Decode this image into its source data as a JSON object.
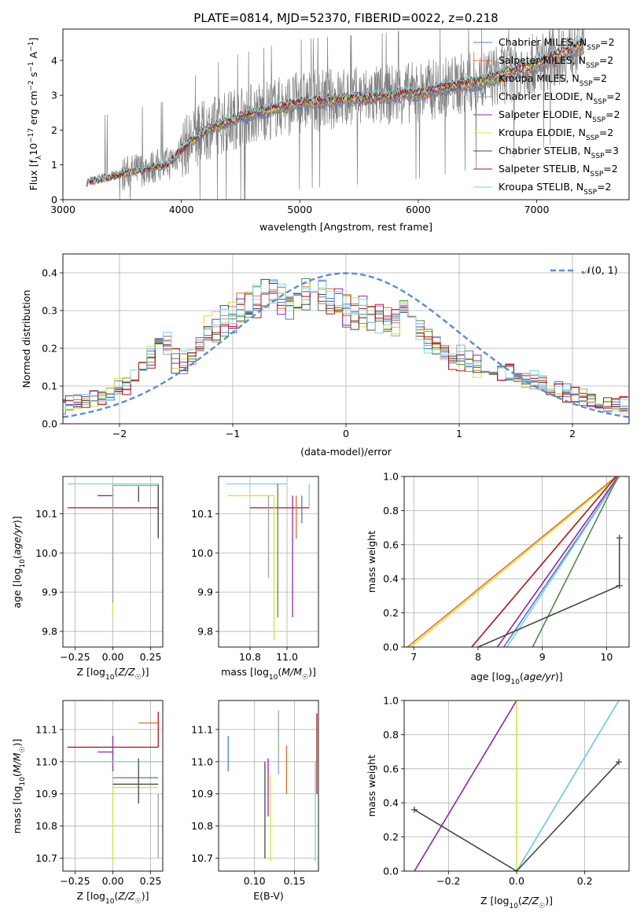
{
  "title": "PLATE=0814, MJD=52370, FIBERID=0022, z=0.218",
  "colors": {
    "chabrier_miles": "#4f79d2",
    "salpeter_miles": "#e0702b",
    "kroupa_miles": "#4e8a4e",
    "chabrier_elodie": "#a0a0a0",
    "salpeter_elodie": "#8e24aa",
    "kroupa_elodie": "#d6e23a",
    "chabrier_stelib": "#474747",
    "salpeter_stelib": "#b11414",
    "kroupa_stelib": "#77d4e4",
    "gaussian": "#5b8bd8"
  },
  "chart_data": [
    {
      "id": "spectrum",
      "type": "line",
      "xlabel": "wavelength [Angstrom, rest frame]",
      "ylabel": "Flux [f_λ 10^-17 erg cm^-2 s^-1 A^-1]",
      "xlim": [
        3000,
        7780
      ],
      "ylim": [
        0,
        4.9
      ],
      "xticks": [
        "3000",
        "4000",
        "5000",
        "6000",
        "7000"
      ],
      "yticks": [
        "0",
        "1",
        "2",
        "3",
        "4"
      ],
      "grid": false,
      "legend_position": "top-right",
      "legend": [
        {
          "model": "Chabrier MILES",
          "n": "2"
        },
        {
          "model": "Salpeter MILES",
          "n": "2"
        },
        {
          "model": "Kroupa MILES",
          "n": "2"
        },
        {
          "model": "Chabrier ELODIE",
          "n": "2"
        },
        {
          "model": "Salpeter ELODIE",
          "n": "2"
        },
        {
          "model": "Kroupa ELODIE",
          "n": "2"
        },
        {
          "model": "Chabrier STELIB",
          "n": "3"
        },
        {
          "model": "Salpeter STELIB",
          "n": "2"
        },
        {
          "model": "Kroupa STELIB",
          "n": "2"
        }
      ],
      "model_continuum": {
        "x": [
          3200,
          3500,
          3700,
          3900,
          4000,
          4200,
          4500,
          4800,
          5000,
          5300,
          5600,
          6000,
          6500,
          7000,
          7400
        ],
        "y": [
          0.5,
          0.75,
          0.9,
          1.05,
          1.45,
          2.0,
          2.4,
          2.65,
          2.8,
          2.9,
          2.95,
          3.1,
          3.4,
          3.9,
          4.5
        ]
      },
      "data_note_range": [
        3200,
        7400
      ]
    },
    {
      "id": "residuals",
      "type": "histogram",
      "xlabel": "(data-model)/error",
      "ylabel": "Normed distribution",
      "xlim": [
        -2.5,
        2.5
      ],
      "ylim": [
        0,
        0.45
      ],
      "xticks": [
        "−2",
        "−1",
        "0",
        "1",
        "2"
      ],
      "yticks": [
        "0.0",
        "0.1",
        "0.2",
        "0.3",
        "0.4"
      ],
      "grid": true,
      "legend_position": "top-right",
      "legend_label": "𝒩(0, 1)",
      "bin_width": 0.1,
      "base_density": [
        0.05,
        0.05,
        0.06,
        0.06,
        0.07,
        0.07,
        0.08,
        0.09,
        0.1,
        0.12,
        0.15,
        0.18,
        0.22,
        0.2,
        0.17,
        0.16,
        0.17,
        0.21,
        0.24,
        0.25,
        0.27,
        0.28,
        0.3,
        0.31,
        0.32,
        0.33,
        0.34,
        0.33,
        0.32,
        0.33,
        0.35,
        0.36,
        0.34,
        0.32,
        0.31,
        0.3,
        0.29,
        0.3,
        0.29,
        0.28,
        0.27,
        0.27,
        0.28,
        0.27,
        0.25,
        0.22,
        0.2,
        0.19,
        0.17,
        0.17,
        0.16,
        0.15,
        0.15,
        0.14,
        0.14,
        0.13,
        0.12,
        0.11,
        0.11,
        0.1,
        0.09,
        0.09,
        0.08,
        0.07,
        0.07,
        0.06,
        0.06,
        0.05,
        0.05,
        0.05
      ]
    },
    {
      "id": "age_vs_Z",
      "type": "errorbar",
      "xlabel": "Z [log₁₀(Z/Z☉)]",
      "ylabel": "age  [log₁₀(age/yr)]",
      "xlim": [
        -0.33,
        0.33
      ],
      "ylim": [
        9.76,
        10.195
      ],
      "xticks": [
        "−0.25",
        "0.00",
        "0.25"
      ],
      "yticks": [
        "9.8",
        "9.9",
        "10.0",
        "10.1"
      ],
      "grid": true,
      "points": [
        {
          "key": "salpeter_stelib",
          "x": 0.0,
          "y": 10.115,
          "xerr": [
            0.3,
            0.3
          ],
          "yerr": [
            0.0,
            0.0
          ]
        },
        {
          "key": "salpeter_elodie",
          "x": 0.0,
          "y": 10.146,
          "xerr": [
            0.1,
            0.0
          ],
          "yerr": [
            0.0,
            0.0
          ]
        },
        {
          "key": "kroupa_stelib",
          "x": 0.0,
          "y": 10.176,
          "xerr": [
            0.3,
            0.3
          ],
          "yerr": [
            0.0,
            0.0
          ]
        },
        {
          "key": "kroupa_elodie",
          "x": 0.0,
          "y": 10.172,
          "xerr": [
            0.0,
            0.3
          ],
          "yerr": [
            0.34,
            0.0
          ]
        },
        {
          "key": "chabrier_elodie",
          "x": 0.0,
          "y": 10.172,
          "xerr": [
            0.0,
            0.3
          ],
          "yerr": [
            0.3,
            0.0
          ]
        },
        {
          "key": "kroupa_miles",
          "x": 0.3,
          "y": 10.176,
          "xerr": [
            0.0,
            0.0
          ],
          "yerr": [
            0.14,
            0.0
          ]
        },
        {
          "key": "chabrier_stelib",
          "x": 0.17,
          "y": 10.15,
          "xerr": [
            0.0,
            0.0
          ],
          "yerr": [
            0.02,
            0.02
          ]
        },
        {
          "key": "chabrier_stelib",
          "x": 0.3,
          "y": 10.1,
          "xerr": [
            0.0,
            0.0
          ],
          "yerr": [
            0.06,
            0.07
          ]
        },
        {
          "key": "chabrier_miles",
          "x": 0.3,
          "y": 10.176,
          "xerr": [
            0.0,
            0.0
          ],
          "yerr": [
            0.0,
            0.0
          ]
        },
        {
          "key": "salpeter_miles",
          "x": 0.3,
          "y": 10.176,
          "xerr": [
            0.0,
            0.0
          ],
          "yerr": [
            0.0,
            0.0
          ]
        }
      ]
    },
    {
      "id": "age_vs_mass",
      "type": "errorbar",
      "xlabel": "mass [log₁₀(M/M☉)]",
      "ylabel": "",
      "xlim": [
        10.63,
        11.17
      ],
      "ylim": [
        9.76,
        10.195
      ],
      "xticks": [
        "10.8",
        "11.0"
      ],
      "yticks": [
        "9.8",
        "9.9",
        "10.0",
        "10.1"
      ],
      "grid": true,
      "points": [
        {
          "key": "salpeter_stelib",
          "x": 11.0,
          "y": 10.115,
          "xerr": [
            0.2,
            0.12
          ],
          "yerr": [
            0.0,
            0.0
          ]
        },
        {
          "key": "salpeter_elodie",
          "x": 11.03,
          "y": 10.146,
          "xerr": [
            0.0,
            0.0
          ],
          "yerr": [
            0.31,
            0.0
          ]
        },
        {
          "key": "salpeter_miles",
          "x": 11.05,
          "y": 10.146,
          "xerr": [
            0.0,
            0.0
          ],
          "yerr": [
            0.11,
            0.0
          ]
        },
        {
          "key": "kroupa_stelib",
          "x": 11.0,
          "y": 10.176,
          "xerr": [
            0.33,
            0.0
          ],
          "yerr": [
            0.0,
            0.0
          ]
        },
        {
          "key": "kroupa_elodie",
          "x": 10.93,
          "y": 10.146,
          "xerr": [
            0.25,
            0.0
          ],
          "yerr": [
            0.37,
            0.0
          ]
        },
        {
          "key": "chabrier_elodie",
          "x": 10.9,
          "y": 10.146,
          "xerr": [
            0.0,
            0.0
          ],
          "yerr": [
            0.21,
            0.0
          ]
        },
        {
          "key": "kroupa_miles",
          "x": 10.95,
          "y": 10.176,
          "xerr": [
            0.0,
            0.0
          ],
          "yerr": [
            0.34,
            0.0
          ]
        },
        {
          "key": "chabrier_stelib",
          "x": 10.95,
          "y": 10.176,
          "xerr": [
            0.0,
            0.0
          ],
          "yerr": [
            0.0,
            0.0
          ]
        },
        {
          "key": "chabrier_miles",
          "x": 11.08,
          "y": 10.146,
          "xerr": [
            0.0,
            0.0
          ],
          "yerr": [
            0.07,
            0.0
          ]
        },
        {
          "key": "kroupa_stelib",
          "x": 11.12,
          "y": 10.176,
          "xerr": [
            0.0,
            0.0
          ],
          "yerr": [
            0.06,
            0.0
          ]
        }
      ]
    },
    {
      "id": "weight_vs_age",
      "type": "line",
      "xlabel": "age  [log₁₀(age/yr)]",
      "ylabel": "mass weight",
      "xlim": [
        6.85,
        10.35
      ],
      "ylim": [
        0,
        1
      ],
      "xticks": [
        "7",
        "8",
        "9",
        "10"
      ],
      "yticks": [
        "0.0",
        "0.2",
        "0.4",
        "0.6",
        "0.8",
        "1.0"
      ],
      "grid": true,
      "series": [
        {
          "key": "kroupa_elodie",
          "x": [
            6.95,
            10.18
          ],
          "y": [
            0.0,
            1.0
          ]
        },
        {
          "key": "salpeter_miles",
          "x": [
            6.9,
            10.15
          ],
          "y": [
            0.0,
            1.0
          ]
        },
        {
          "key": "salpeter_stelib",
          "x": [
            7.9,
            10.15
          ],
          "y": [
            0.0,
            1.0
          ]
        },
        {
          "key": "salpeter_elodie",
          "x": [
            8.3,
            10.18
          ],
          "y": [
            0.0,
            1.0
          ]
        },
        {
          "key": "chabrier_miles",
          "x": [
            8.4,
            10.2
          ],
          "y": [
            0.0,
            1.0
          ]
        },
        {
          "key": "kroupa_stelib",
          "x": [
            8.45,
            10.2
          ],
          "y": [
            0.0,
            1.0
          ]
        },
        {
          "key": "kroupa_miles",
          "x": [
            8.85,
            10.18
          ],
          "y": [
            0.0,
            1.0
          ]
        },
        {
          "key": "chabrier_stelib",
          "x": [
            8.0,
            10.2
          ],
          "y": [
            0.0,
            0.36
          ]
        },
        {
          "key": "chabrier_stelib",
          "x": [
            10.2,
            10.2
          ],
          "y": [
            0.36,
            0.64
          ]
        }
      ],
      "markers": [
        {
          "key": "chabrier_stelib",
          "x": 10.2,
          "y": 0.36
        },
        {
          "key": "chabrier_stelib",
          "x": 10.2,
          "y": 0.64
        }
      ]
    },
    {
      "id": "mass_vs_Z",
      "type": "errorbar",
      "xlabel": "Z [log₁₀(Z/Z☉)]",
      "ylabel": "mass [log₁₀(M/M☉)]",
      "xlim": [
        -0.33,
        0.33
      ],
      "ylim": [
        10.66,
        11.19
      ],
      "xticks": [
        "−0.25",
        "0.00",
        "0.25"
      ],
      "yticks": [
        "10.7",
        "10.8",
        "10.9",
        "11.0",
        "11.1"
      ],
      "grid": true,
      "points": [
        {
          "key": "salpeter_stelib",
          "x": 0.3,
          "y": 11.045,
          "xerr": [
            0.6,
            0.0
          ],
          "yerr": [
            0.0,
            0.11
          ]
        },
        {
          "key": "salpeter_elodie",
          "x": 0.0,
          "y": 11.03,
          "xerr": [
            0.1,
            0.0
          ],
          "yerr": [
            0.06,
            0.05
          ]
        },
        {
          "key": "kroupa_stelib",
          "x": 0.0,
          "y": 11.0,
          "xerr": [
            0.3,
            0.3
          ],
          "yerr": [
            0.0,
            0.0
          ]
        },
        {
          "key": "kroupa_elodie",
          "x": 0.0,
          "y": 10.92,
          "xerr": [
            0.0,
            0.3
          ],
          "yerr": [
            0.24,
            0.0
          ]
        },
        {
          "key": "kroupa_miles",
          "x": 0.0,
          "y": 10.95,
          "xerr": [
            0.0,
            0.3
          ],
          "yerr": [
            0.0,
            0.0
          ]
        },
        {
          "key": "chabrier_stelib",
          "x": 0.17,
          "y": 10.93,
          "xerr": [
            0.17,
            0.13
          ],
          "yerr": [
            0.06,
            0.08
          ]
        },
        {
          "key": "salpeter_miles",
          "x": 0.3,
          "y": 11.12,
          "xerr": [
            0.13,
            0.0
          ],
          "yerr": [
            0.0,
            0.0
          ]
        },
        {
          "key": "chabrier_miles",
          "x": 0.3,
          "y": 11.08,
          "xerr": [
            0.0,
            0.0
          ],
          "yerr": [
            0.0,
            0.0
          ]
        },
        {
          "key": "chabrier_elodie",
          "x": 0.3,
          "y": 10.9,
          "xerr": [
            0.0,
            0.0
          ],
          "yerr": [
            0.2,
            0.0
          ]
        }
      ]
    },
    {
      "id": "mass_vs_ebv",
      "type": "errorbar",
      "xlabel": "E(B-V)",
      "ylabel": "",
      "xlim": [
        0.055,
        0.18
      ],
      "ylim": [
        10.66,
        11.19
      ],
      "xticks": [
        "0.10",
        "0.15"
      ],
      "yticks": [
        "10.7",
        "10.8",
        "10.9",
        "11.0",
        "11.1"
      ],
      "grid": true,
      "points": [
        {
          "key": "chabrier_miles",
          "x": 0.067,
          "y": 11.03,
          "yerr": [
            0.06,
            0.05
          ]
        },
        {
          "key": "chabrier_stelib",
          "x": 0.113,
          "y": 10.85,
          "yerr": [
            0.15,
            0.15
          ]
        },
        {
          "key": "salpeter_elodie",
          "x": 0.117,
          "y": 10.93,
          "yerr": [
            0.1,
            0.08
          ]
        },
        {
          "key": "kroupa_elodie",
          "x": 0.12,
          "y": 10.83,
          "yerr": [
            0.14,
            0.13
          ]
        },
        {
          "key": "chabrier_elodie",
          "x": 0.13,
          "y": 11.03,
          "yerr": [
            0.07,
            0.13
          ]
        },
        {
          "key": "salpeter_miles",
          "x": 0.14,
          "y": 10.98,
          "yerr": [
            0.08,
            0.07
          ]
        },
        {
          "key": "salpeter_stelib",
          "x": 0.178,
          "y": 11.0,
          "yerr": [
            0.1,
            0.15
          ]
        },
        {
          "key": "kroupa_stelib",
          "x": 0.176,
          "y": 10.85,
          "yerr": [
            0.16,
            0.15
          ]
        }
      ]
    },
    {
      "id": "weight_vs_Z",
      "type": "line",
      "xlabel": "Z [log₁₀(Z/Z☉)]",
      "ylabel": "mass weight",
      "xlim": [
        -0.33,
        0.33
      ],
      "ylim": [
        0,
        1
      ],
      "xticks": [
        "−0.2",
        "0.0",
        "0.2"
      ],
      "yticks": [
        "0.0",
        "0.2",
        "0.4",
        "0.6",
        "0.8",
        "1.0"
      ],
      "grid": true,
      "series": [
        {
          "key": "salpeter_elodie",
          "x": [
            -0.3,
            0.0
          ],
          "y": [
            0.0,
            1.0
          ]
        },
        {
          "key": "kroupa_elodie",
          "x": [
            0.0,
            0.0
          ],
          "y": [
            0.0,
            1.0
          ]
        },
        {
          "key": "chabrier_miles",
          "x": [
            0.0,
            0.3
          ],
          "y": [
            0.0,
            1.0
          ]
        },
        {
          "key": "kroupa_stelib",
          "x": [
            0.0,
            0.3
          ],
          "y": [
            0.0,
            1.0
          ]
        },
        {
          "key": "chabrier_stelib",
          "x": [
            -0.3,
            0.0
          ],
          "y": [
            0.36,
            0.0
          ]
        },
        {
          "key": "chabrier_stelib",
          "x": [
            0.0,
            0.3
          ],
          "y": [
            0.0,
            0.64
          ]
        }
      ],
      "markers": [
        {
          "key": "chabrier_stelib",
          "x": -0.3,
          "y": 0.36
        },
        {
          "key": "chabrier_stelib",
          "x": 0.3,
          "y": 0.64
        }
      ]
    }
  ]
}
